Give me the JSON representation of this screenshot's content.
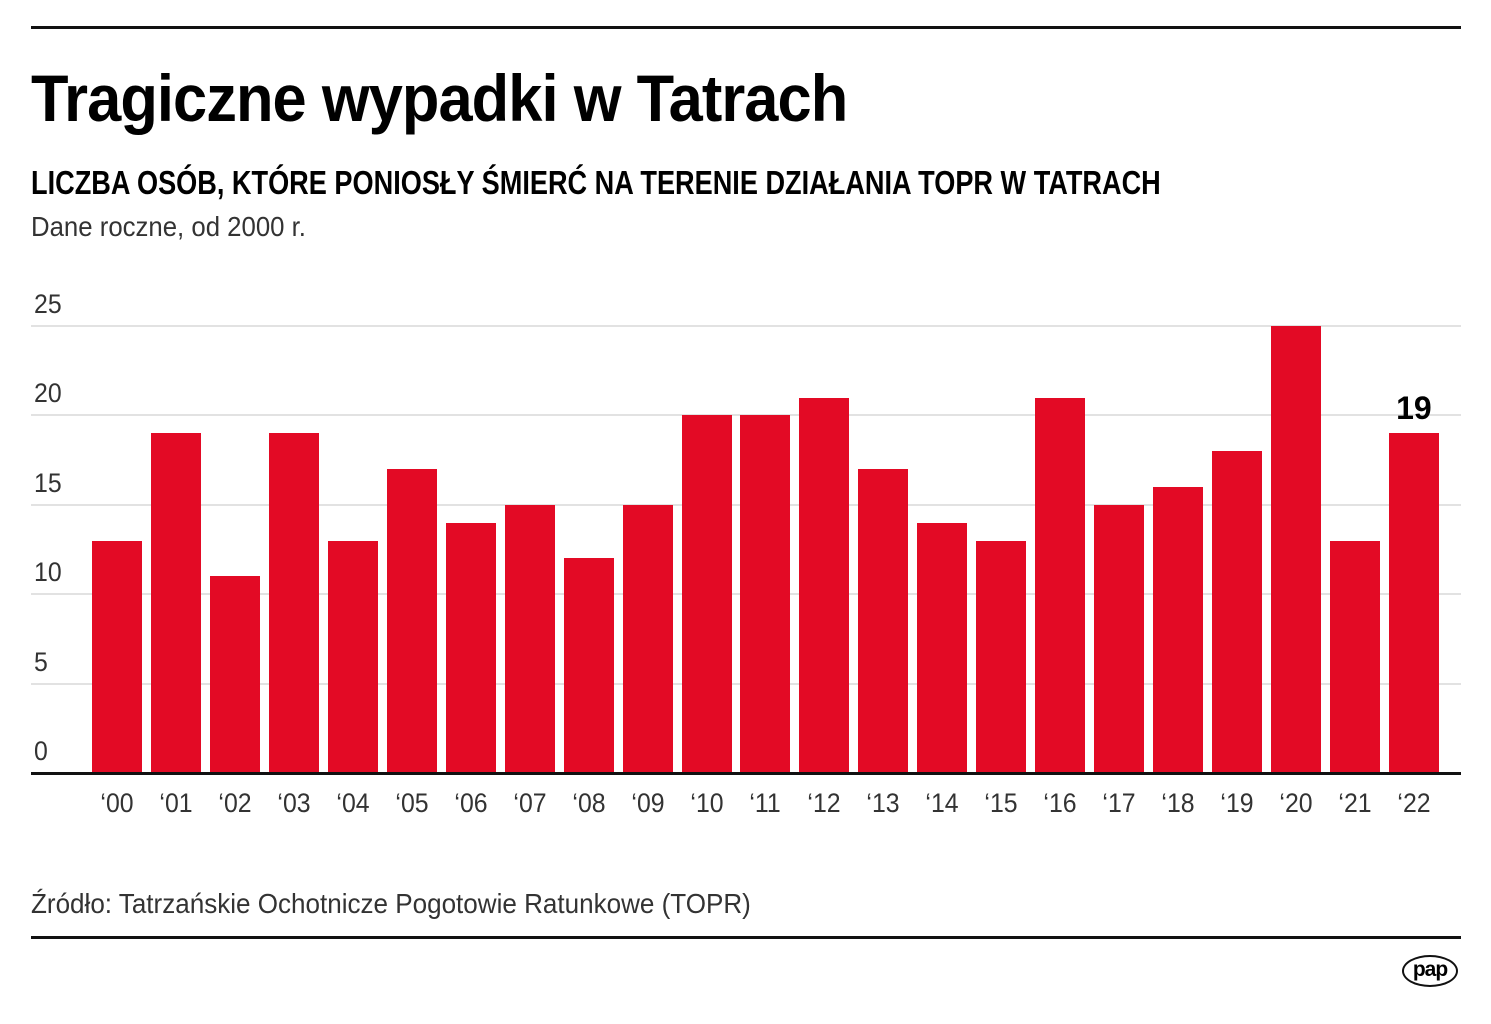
{
  "header": {
    "title": "Tragiczne wypadki w Tatrach",
    "subtitle": "LICZBA OSÓB, KTÓRE PONIOSŁY ŚMIERĆ NA TERENIE DZIAŁANIA TOPR W TATRACH",
    "note": "Dane roczne, od 2000 r."
  },
  "footer": {
    "source": "Źródło: Tatrzańskie Ochotnicze Pogotowie Ratunkowe (TOPR)",
    "logo": "pap"
  },
  "colors": {
    "bar": "#e30a25",
    "grid": "#e2e2e2",
    "axis": "#111111",
    "text": "#333333"
  },
  "chart_data": {
    "type": "bar",
    "title": "Tragiczne wypadki w Tatrach",
    "subtitle": "LICZBA OSÓB, KTÓRE PONIOSŁY ŚMIERĆ NA TERENIE DZIAŁANIA TOPR W TATRACH",
    "note": "Dane roczne, od 2000 r.",
    "xlabel": "",
    "ylabel": "",
    "categories": [
      "‘00",
      "‘01",
      "‘02",
      "‘03",
      "‘04",
      "‘05",
      "‘06",
      "‘07",
      "‘08",
      "‘09",
      "‘10",
      "‘11",
      "‘12",
      "‘13",
      "‘14",
      "‘15",
      "‘16",
      "‘17",
      "‘18",
      "‘19",
      "‘20",
      "‘21",
      "‘22"
    ],
    "values": [
      13,
      19,
      11,
      19,
      13,
      17,
      14,
      15,
      12,
      15,
      20,
      20,
      21,
      17,
      14,
      13,
      21,
      15,
      16,
      18,
      25,
      13,
      19
    ],
    "ylim": [
      0,
      25
    ],
    "yticks": [
      0,
      5,
      10,
      15,
      20,
      25
    ],
    "grid": true,
    "legend": null,
    "annotations": [
      {
        "category": "‘22",
        "label": "19"
      }
    ],
    "source": "Źródło: Tatrzańskie Ochotnicze Pogotowie Ratunkowe (TOPR)"
  }
}
